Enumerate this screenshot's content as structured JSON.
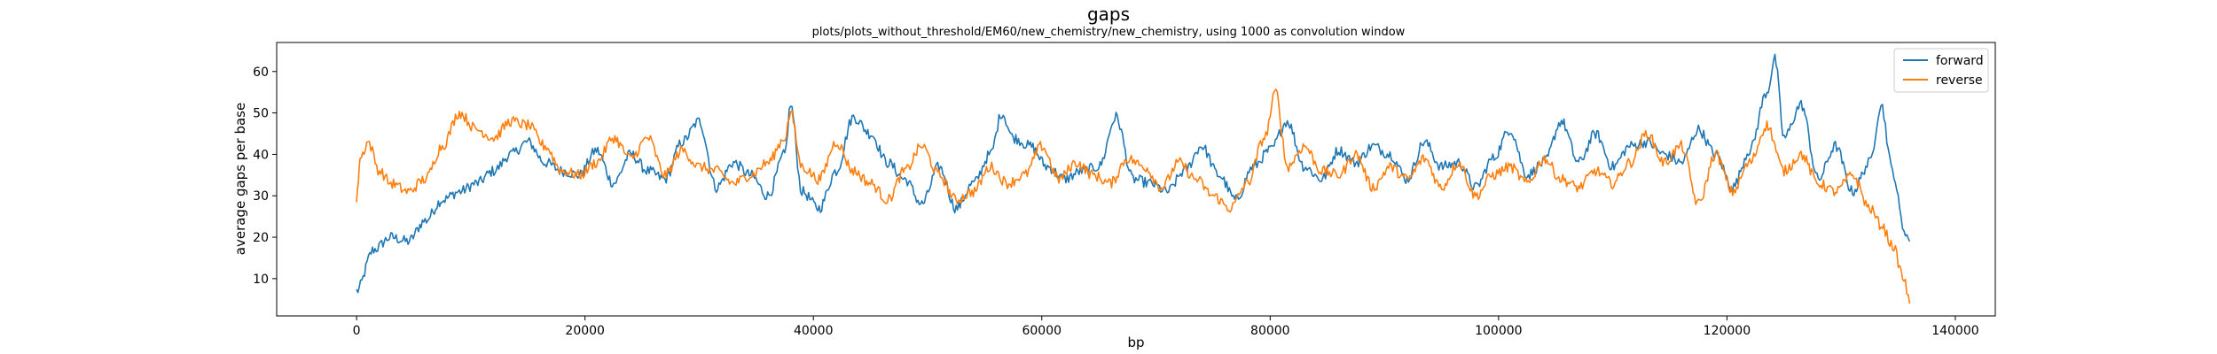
{
  "chart_data": {
    "type": "line",
    "title": "gaps",
    "subtitle": "plots/plots_without_threshold/EM60/new_chemistry/new_chemistry, using 1000 as convolution window",
    "xlabel": "bp",
    "ylabel": "average gaps per base",
    "xlim": [
      -7000,
      143500
    ],
    "ylim": [
      1,
      67
    ],
    "xticks": [
      0,
      20000,
      40000,
      60000,
      80000,
      100000,
      120000,
      140000
    ],
    "xtick_labels": [
      "0",
      "20000",
      "40000",
      "60000",
      "80000",
      "100000",
      "120000",
      "140000"
    ],
    "yticks": [
      10,
      20,
      30,
      40,
      50,
      60
    ],
    "ytick_labels": [
      "10",
      "20",
      "30",
      "40",
      "50",
      "60"
    ],
    "grid": false,
    "legend_position": "top-right",
    "series": [
      {
        "name": "forward",
        "color": "#1f77b4",
        "x": [
          0,
          1500,
          3000,
          4500,
          6000,
          7500,
          9000,
          10500,
          12000,
          13500,
          15000,
          16500,
          18000,
          19500,
          21000,
          22500,
          24000,
          25500,
          27000,
          28500,
          30000,
          31500,
          33000,
          34500,
          36000,
          37500,
          38000,
          39000,
          40500,
          42000,
          43500,
          45000,
          46500,
          48000,
          49500,
          51000,
          52500,
          54000,
          55500,
          56500,
          57500,
          59000,
          60500,
          62000,
          63500,
          65000,
          66500,
          68000,
          69500,
          71000,
          72500,
          74000,
          75500,
          77000,
          78500,
          80000,
          81500,
          83000,
          84500,
          86000,
          87500,
          89000,
          90500,
          92000,
          93500,
          95000,
          96500,
          98000,
          99500,
          101000,
          102500,
          104000,
          105500,
          107000,
          108500,
          110000,
          111500,
          113000,
          114500,
          116000,
          117500,
          119000,
          120500,
          122000,
          123500,
          124200,
          125000,
          126500,
          128000,
          129500,
          131000,
          132500,
          133500,
          134500,
          135500,
          136000
        ],
        "y": [
          7,
          17,
          20,
          19,
          24,
          29,
          31,
          33,
          36,
          40,
          43,
          38,
          36,
          35,
          41,
          33,
          40,
          36,
          34,
          43,
          48,
          32,
          38,
          35,
          30,
          40,
          52,
          31,
          27,
          36,
          49,
          45,
          38,
          34,
          28,
          37,
          27,
          33,
          40,
          50,
          44,
          42,
          37,
          34,
          36,
          37,
          49,
          34,
          33,
          31,
          36,
          42,
          35,
          29,
          37,
          41,
          48,
          37,
          34,
          41,
          38,
          42,
          40,
          34,
          43,
          37,
          38,
          32,
          39,
          46,
          35,
          38,
          48,
          38,
          45,
          37,
          42,
          43,
          40,
          38,
          46,
          40,
          32,
          41,
          55,
          63,
          44,
          52,
          34,
          42,
          31,
          38,
          52,
          36,
          22,
          19
        ]
      },
      {
        "name": "reverse",
        "color": "#ff7f0e",
        "x": [
          0,
          300,
          1000,
          2000,
          3000,
          4500,
          6000,
          7500,
          9000,
          10500,
          12000,
          13500,
          15000,
          16500,
          18000,
          19500,
          21000,
          22500,
          24000,
          25500,
          27000,
          28500,
          30000,
          31500,
          33000,
          34500,
          36000,
          37500,
          38000,
          39000,
          40500,
          42000,
          43500,
          45000,
          46500,
          48000,
          49500,
          51000,
          52500,
          54000,
          55500,
          57000,
          58500,
          60000,
          61500,
          63000,
          64500,
          66000,
          67500,
          69000,
          70500,
          72000,
          73500,
          75000,
          76500,
          78000,
          79500,
          80500,
          81500,
          83000,
          84500,
          86000,
          87500,
          89000,
          90500,
          92000,
          93500,
          95000,
          96500,
          98000,
          99500,
          101000,
          102500,
          104000,
          105500,
          107000,
          108500,
          110000,
          111500,
          113000,
          114500,
          116000,
          117500,
          119000,
          120500,
          122000,
          123500,
          125000,
          126500,
          128000,
          129500,
          131000,
          132500,
          133500,
          134500,
          135500,
          136000
        ],
        "y": [
          29,
          39,
          43,
          36,
          33,
          31,
          34,
          42,
          50,
          46,
          44,
          48,
          47,
          42,
          36,
          35,
          38,
          44,
          39,
          44,
          35,
          41,
          37,
          36,
          33,
          35,
          38,
          44,
          50,
          37,
          34,
          43,
          36,
          33,
          29,
          36,
          42,
          35,
          29,
          31,
          37,
          33,
          35,
          42,
          34,
          38,
          35,
          33,
          39,
          37,
          32,
          38,
          34,
          30,
          27,
          33,
          44,
          55,
          37,
          42,
          36,
          35,
          40,
          32,
          37,
          34,
          39,
          32,
          38,
          30,
          35,
          37,
          33,
          39,
          34,
          32,
          36,
          33,
          38,
          45,
          38,
          42,
          28,
          40,
          31,
          38,
          47,
          36,
          40,
          33,
          31,
          35,
          27,
          23,
          18,
          10,
          4
        ]
      }
    ]
  }
}
